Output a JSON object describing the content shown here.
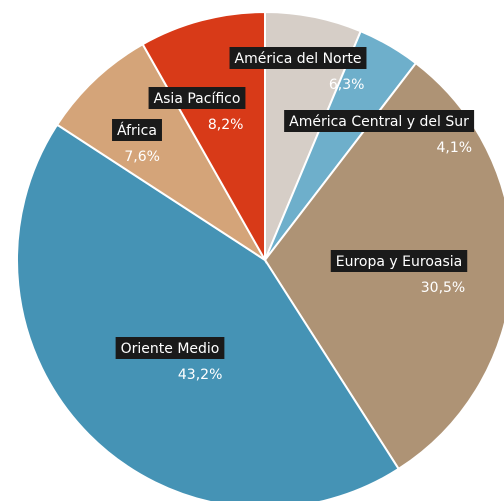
{
  "chart_data": {
    "type": "pie",
    "categories": [
      "América del Norte",
      "América Central y del Sur",
      "Europa y Euroasia",
      "Oriente Medio",
      "África",
      "Asia Pacífico"
    ],
    "values": [
      6.3,
      4.1,
      30.5,
      43.2,
      7.6,
      8.2
    ],
    "value_labels": [
      "6,3%",
      "4,1%",
      "30,5%",
      "43,2%",
      "7,6%",
      "8,2%"
    ],
    "colors": [
      "#d6cec7",
      "#6eafcb",
      "#ae9375",
      "#4593b5",
      "#d4a479",
      "#d83a18"
    ]
  }
}
